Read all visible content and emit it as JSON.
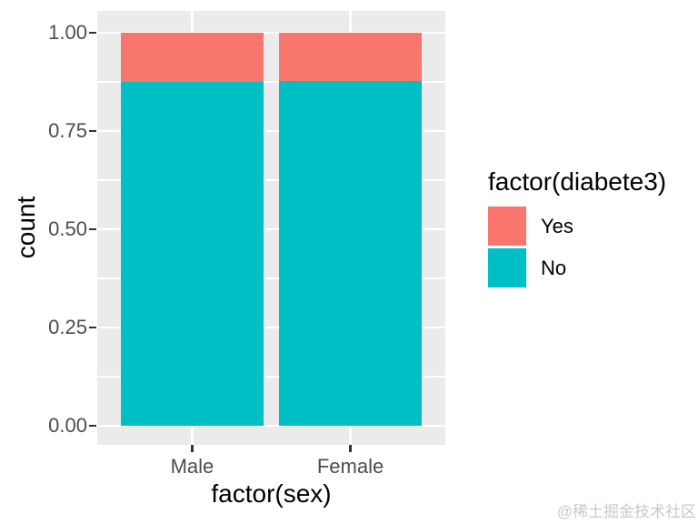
{
  "watermark": {
    "text": "@稀土掘金技术社区",
    "color": "#c8c8c8"
  },
  "chart_data": {
    "type": "bar",
    "subtype": "stacked-proportion",
    "xlabel": "factor(sex)",
    "ylabel": "count",
    "categories": [
      "Male",
      "Female"
    ],
    "series": [
      {
        "name": "Yes",
        "color": "#F8766D",
        "values": [
          0.125,
          0.123
        ]
      },
      {
        "name": "No",
        "color": "#00BFC4",
        "values": [
          0.875,
          0.877
        ]
      }
    ],
    "stack_order_bottom_to_top": [
      "No",
      "Yes"
    ],
    "ylim": [
      0,
      1
    ],
    "yticks": [
      0,
      0.25,
      0.5,
      0.75,
      1
    ],
    "ytick_labels": [
      "0.00",
      "0.25",
      "0.50",
      "0.75",
      "1.00"
    ],
    "minor_gridlines": [
      0.125,
      0.375,
      0.625,
      0.875
    ],
    "grid": "on",
    "legend": {
      "title": "factor(diabete3)",
      "position": "right",
      "entries": [
        {
          "label": "Yes",
          "color": "#F8766D"
        },
        {
          "label": "No",
          "color": "#00BFC4"
        }
      ]
    },
    "theme": {
      "panel_background": "#EBEBEB",
      "gridline_color": "#FFFFFF",
      "axis_text_color": "#4D4D4D",
      "tick_mark_color": "#333333",
      "title_color": "#000000"
    }
  }
}
